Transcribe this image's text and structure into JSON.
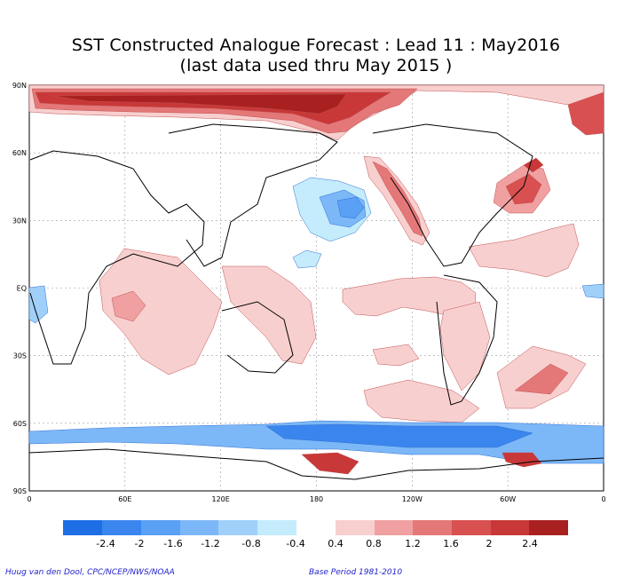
{
  "title_line1": "SST Constructed Analogue Forecast : Lead 11 : May2016",
  "title_line2": "(last data used thru May 2015 )",
  "lat_labels": [
    "90N",
    "60N",
    "30N",
    "EQ",
    "30S",
    "60S",
    "90S"
  ],
  "lon_labels": [
    "0",
    "60E",
    "120E",
    "180",
    "120W",
    "60W",
    "0"
  ],
  "colorbar": {
    "negative_colors": [
      "#1e6ee6",
      "#3a86ee",
      "#5aa0f4",
      "#7cb8f8",
      "#a0d0fa",
      "#c4ecfc"
    ],
    "positive_colors": [
      "#f8cfcf",
      "#f0a0a0",
      "#e47878",
      "#d85050",
      "#c83838",
      "#a82020"
    ],
    "labels": [
      "-2.4",
      "-2",
      "-1.6",
      "-1.2",
      "-0.8",
      "-0.4",
      "0.4",
      "0.8",
      "1.2",
      "1.6",
      "2",
      "2.4"
    ]
  },
  "footer_left": "Huug van den Dool, CPC/NCEP/NWS/NOAA",
  "footer_right": "Base Period 1981-2010"
}
